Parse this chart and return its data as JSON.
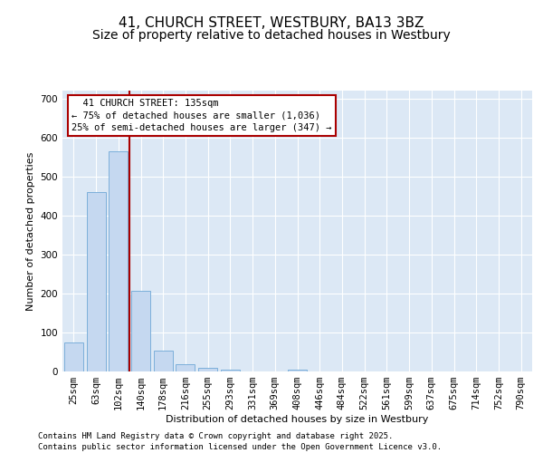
{
  "title": "41, CHURCH STREET, WESTBURY, BA13 3BZ",
  "subtitle": "Size of property relative to detached houses in Westbury",
  "xlabel": "Distribution of detached houses by size in Westbury",
  "ylabel": "Number of detached properties",
  "footnote1": "Contains HM Land Registry data © Crown copyright and database right 2025.",
  "footnote2": "Contains public sector information licensed under the Open Government Licence v3.0.",
  "categories": [
    "25sqm",
    "63sqm",
    "102sqm",
    "140sqm",
    "178sqm",
    "216sqm",
    "255sqm",
    "293sqm",
    "331sqm",
    "369sqm",
    "408sqm",
    "446sqm",
    "484sqm",
    "522sqm",
    "561sqm",
    "599sqm",
    "637sqm",
    "675sqm",
    "714sqm",
    "752sqm",
    "790sqm"
  ],
  "values": [
    75,
    460,
    565,
    207,
    53,
    18,
    10,
    5,
    0,
    0,
    5,
    0,
    0,
    0,
    0,
    0,
    0,
    0,
    0,
    0,
    0
  ],
  "bar_color": "#c5d8f0",
  "bar_edge_color": "#6fa8d6",
  "vline_position": 2.5,
  "vline_color": "#aa0000",
  "annotation_text": "  41 CHURCH STREET: 135sqm\n← 75% of detached houses are smaller (1,036)\n25% of semi-detached houses are larger (347) →",
  "annotation_box_facecolor": "#ffffff",
  "annotation_box_edgecolor": "#aa0000",
  "ylim": [
    0,
    720
  ],
  "yticks": [
    0,
    100,
    200,
    300,
    400,
    500,
    600,
    700
  ],
  "bg_color": "#dce8f5",
  "grid_color": "#ffffff",
  "title_fontsize": 11,
  "subtitle_fontsize": 10,
  "axis_label_fontsize": 8,
  "tick_fontsize": 7.5,
  "footnote_fontsize": 6.5
}
